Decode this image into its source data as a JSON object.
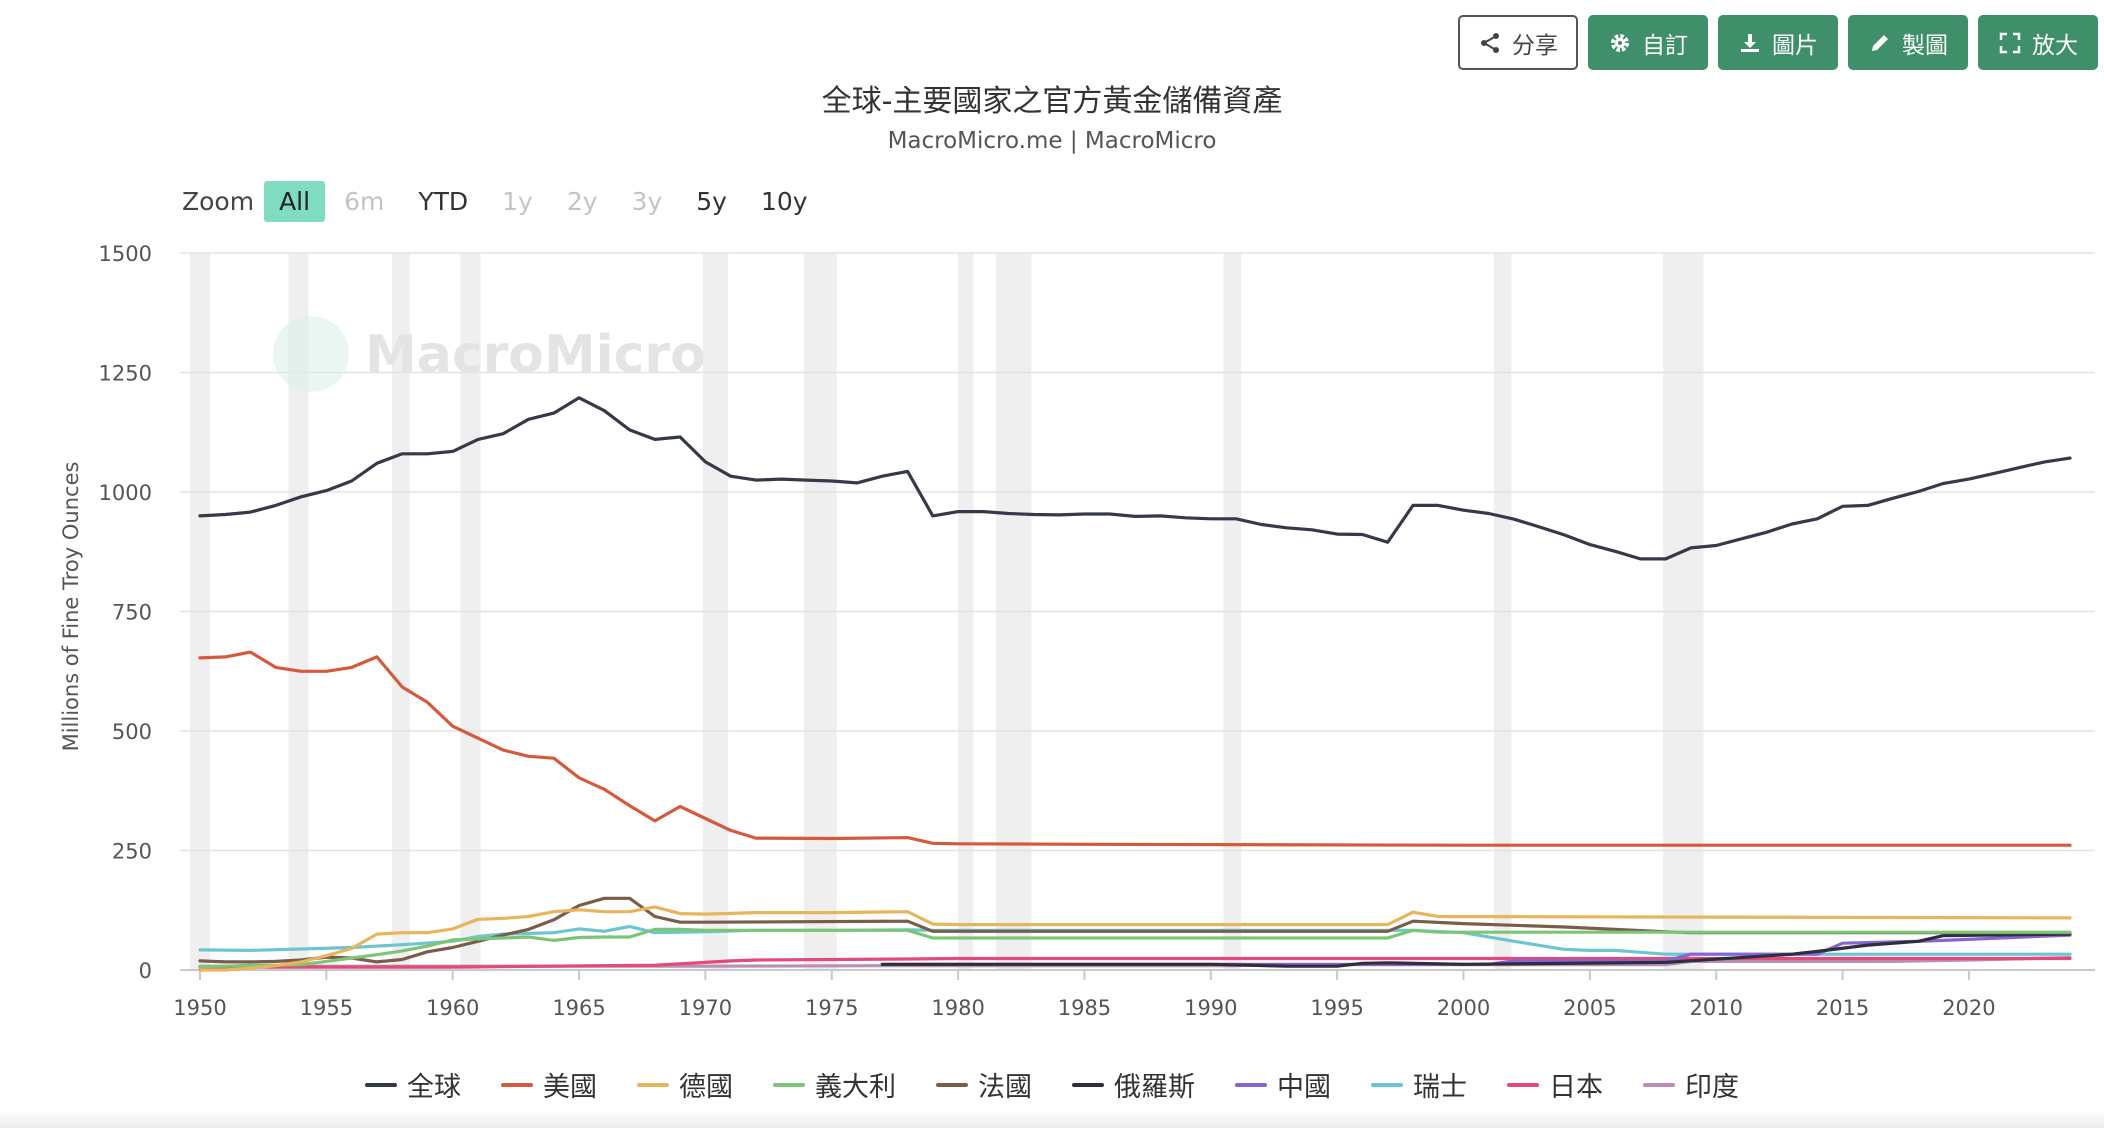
{
  "toolbar": {
    "share": "分享",
    "custom": "自訂",
    "image": "圖片",
    "make": "製圖",
    "expand": "放大"
  },
  "header": {
    "title": "全球-主要國家之官方黃金儲備資產",
    "subtitle": "MacroMicro.me | MacroMicro"
  },
  "watermark": "MacroMicro",
  "zoom": {
    "label": "Zoom",
    "buttons": [
      {
        "label": "All",
        "state": "active"
      },
      {
        "label": "6m",
        "state": "disabled"
      },
      {
        "label": "YTD",
        "state": "enabled"
      },
      {
        "label": "1y",
        "state": "disabled"
      },
      {
        "label": "2y",
        "state": "disabled"
      },
      {
        "label": "3y",
        "state": "disabled"
      },
      {
        "label": "5y",
        "state": "enabled"
      },
      {
        "label": "10y",
        "state": "enabled"
      }
    ]
  },
  "chart_data": {
    "type": "line",
    "ylabel": "Millions of Fine Troy Ounces",
    "ylim": [
      0,
      1500
    ],
    "yticks": [
      0,
      250,
      500,
      750,
      1000,
      1250,
      1500
    ],
    "xlim": [
      1950,
      2024
    ],
    "xticks": [
      1950,
      1955,
      1960,
      1965,
      1970,
      1975,
      1980,
      1985,
      1990,
      1995,
      2000,
      2005,
      2010,
      2015,
      2020
    ],
    "grid": true,
    "legend_position": "bottom",
    "recession_bands": [
      [
        1949.6,
        1950.4
      ],
      [
        1953.5,
        1954.3
      ],
      [
        1957.6,
        1958.3
      ],
      [
        1960.3,
        1961.1
      ],
      [
        1969.9,
        1970.9
      ],
      [
        1973.9,
        1975.2
      ],
      [
        1980.0,
        1980.6
      ],
      [
        1981.5,
        1982.9
      ],
      [
        1990.5,
        1991.2
      ],
      [
        2001.2,
        2001.9
      ],
      [
        2007.9,
        2009.5
      ]
    ],
    "series": [
      {
        "name": "全球",
        "color": "#343a48",
        "x": [
          1950,
          1951,
          1952,
          1953,
          1954,
          1955,
          1956,
          1957,
          1958,
          1959,
          1960,
          1961,
          1962,
          1963,
          1964,
          1965,
          1966,
          1967,
          1968,
          1969,
          1970,
          1971,
          1972,
          1973,
          1974,
          1975,
          1976,
          1977,
          1978,
          1979,
          1980,
          1981,
          1982,
          1983,
          1984,
          1985,
          1986,
          1987,
          1988,
          1989,
          1990,
          1991,
          1992,
          1993,
          1994,
          1995,
          1996,
          1997,
          1998,
          1999,
          2000,
          2001,
          2002,
          2003,
          2004,
          2005,
          2006,
          2007,
          2008,
          2009,
          2010,
          2011,
          2012,
          2013,
          2014,
          2015,
          2016,
          2017,
          2018,
          2019,
          2020,
          2021,
          2022,
          2023,
          2024
        ],
        "y": [
          950,
          953,
          958,
          972,
          990,
          1003,
          1023,
          1060,
          1080,
          1080,
          1085,
          1110,
          1122,
          1152,
          1165,
          1197,
          1170,
          1130,
          1110,
          1115,
          1063,
          1033,
          1025,
          1027,
          1025,
          1023,
          1019,
          1033,
          1043,
          950,
          959,
          959,
          955,
          953,
          952,
          954,
          954,
          949,
          950,
          946,
          944,
          944,
          932,
          925,
          921,
          912,
          911,
          895,
          972,
          972,
          962,
          955,
          943,
          927,
          910,
          890,
          876,
          860,
          860,
          883,
          888,
          902,
          916,
          933,
          944,
          970,
          972,
          987,
          1001,
          1018,
          1027,
          1039,
          1051,
          1063,
          1071
        ]
      },
      {
        "name": "美國",
        "color": "#d55a3d",
        "x": [
          1950,
          1951,
          1952,
          1953,
          1954,
          1955,
          1956,
          1957,
          1958,
          1959,
          1960,
          1961,
          1962,
          1963,
          1964,
          1965,
          1966,
          1967,
          1968,
          1969,
          1970,
          1971,
          1972,
          1975,
          1978,
          1979,
          1980,
          1985,
          2000,
          2024
        ],
        "y": [
          653,
          655,
          665,
          633,
          625,
          625,
          633,
          655,
          592,
          560,
          510,
          485,
          460,
          447,
          443,
          402,
          378,
          344,
          312,
          342,
          317,
          292,
          276,
          275,
          277,
          265,
          264,
          263,
          261,
          261
        ]
      },
      {
        "name": "德國",
        "color": "#e9b55c",
        "x": [
          1950,
          1951,
          1952,
          1953,
          1954,
          1955,
          1956,
          1957,
          1958,
          1959,
          1960,
          1961,
          1962,
          1963,
          1964,
          1965,
          1966,
          1967,
          1968,
          1969,
          1970,
          1972,
          1975,
          1978,
          1979,
          1980,
          1997,
          1998,
          1999,
          2024
        ],
        "y": [
          0,
          0,
          4,
          9,
          17,
          30,
          45,
          75,
          78,
          78,
          86,
          106,
          108,
          112,
          122,
          126,
          122,
          122,
          132,
          118,
          117,
          120,
          120,
          122,
          96,
          95,
          95,
          121,
          112,
          109
        ]
      },
      {
        "name": "義大利",
        "color": "#7cc576",
        "x": [
          1950,
          1951,
          1952,
          1953,
          1954,
          1955,
          1956,
          1957,
          1958,
          1959,
          1960,
          1961,
          1962,
          1963,
          1964,
          1965,
          1966,
          1967,
          1968,
          1969,
          1970,
          1978,
          1979,
          1980,
          1997,
          1998,
          1999,
          2024
        ],
        "y": [
          7,
          8,
          10,
          10,
          11,
          18,
          25,
          32,
          40,
          50,
          63,
          65,
          67,
          69,
          62,
          68,
          69,
          69,
          85,
          85,
          83,
          83,
          67,
          67,
          67,
          83,
          79,
          79
        ]
      },
      {
        "name": "法國",
        "color": "#7a5c4b",
        "x": [
          1950,
          1951,
          1952,
          1953,
          1954,
          1955,
          1956,
          1957,
          1958,
          1959,
          1960,
          1961,
          1962,
          1963,
          1964,
          1965,
          1966,
          1967,
          1968,
          1969,
          1970,
          1978,
          1979,
          1980,
          1997,
          1998,
          2000,
          2004,
          2008,
          2009,
          2024
        ],
        "y": [
          19,
          17,
          17,
          18,
          21,
          27,
          25,
          17,
          22,
          38,
          47,
          60,
          73,
          85,
          105,
          135,
          150,
          150,
          112,
          100,
          100,
          102,
          81,
          81,
          81,
          102,
          97,
          90,
          80,
          78,
          78
        ]
      },
      {
        "name": "俄羅斯",
        "color": "#2e2f3a",
        "x": [
          1977,
          1990,
          1993,
          1995,
          1996,
          1997,
          2000,
          2008,
          2013,
          2014,
          2016,
          2018,
          2019,
          2024
        ],
        "y": [
          12,
          12,
          8,
          8,
          14,
          15,
          12,
          16,
          33,
          39,
          52,
          60,
          72,
          75
        ]
      },
      {
        "name": "中國",
        "color": "#8266d6",
        "x": [
          1977,
          2001,
          2002,
          2008,
          2009,
          2014,
          2015,
          2018,
          2019,
          2024
        ],
        "y": [
          12,
          12,
          19,
          19,
          33,
          33,
          56,
          60,
          62,
          73
        ]
      },
      {
        "name": "瑞士",
        "color": "#6ec5d0",
        "x": [
          1950,
          1952,
          1954,
          1956,
          1958,
          1960,
          1961,
          1962,
          1964,
          1965,
          1966,
          1967,
          1968,
          1970,
          1972,
          1975,
          1978,
          1979,
          1980,
          1997,
          1998,
          2000,
          2002,
          2004,
          2005,
          2006,
          2008,
          2024
        ],
        "y": [
          42,
          41,
          44,
          47,
          53,
          60,
          70,
          75,
          78,
          86,
          81,
          91,
          78,
          80,
          83,
          83,
          84,
          83,
          83,
          83,
          83,
          78,
          60,
          43,
          41,
          41,
          33,
          33
        ]
      },
      {
        "name": "日本",
        "color": "#e14a7a",
        "x": [
          1950,
          1960,
          1968,
          1970,
          1971,
          1972,
          1978,
          1980,
          1997,
          2003,
          2008,
          2024
        ],
        "y": [
          6,
          6,
          10,
          16,
          19,
          21,
          23,
          24,
          24,
          24,
          24,
          24
        ]
      },
      {
        "name": "印度",
        "color": "#b98fb6",
        "x": [
          1950,
          1970,
          1977,
          1991,
          1992,
          2008,
          2009,
          2017,
          2020,
          2024
        ],
        "y": [
          8,
          8,
          9,
          9,
          11,
          11,
          18,
          18,
          21,
          26
        ]
      }
    ]
  }
}
